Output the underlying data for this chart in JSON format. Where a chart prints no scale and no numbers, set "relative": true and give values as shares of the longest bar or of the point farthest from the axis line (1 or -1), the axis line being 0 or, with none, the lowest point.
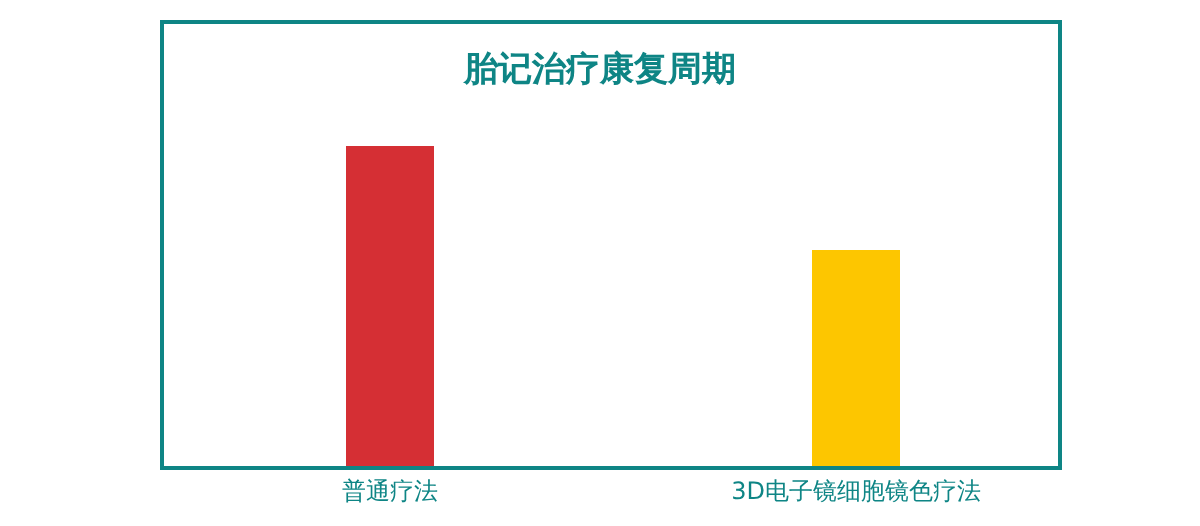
{
  "chart_data": {
    "type": "bar",
    "title": "胎记治疗康复周期",
    "categories": [
      "普通疗法",
      "3D电子镜细胞镜色疗法"
    ],
    "values": [
      1,
      0.677
    ],
    "colors": [
      "#d52f34",
      "#fdc600"
    ],
    "relative": true,
    "legend": false
  }
}
